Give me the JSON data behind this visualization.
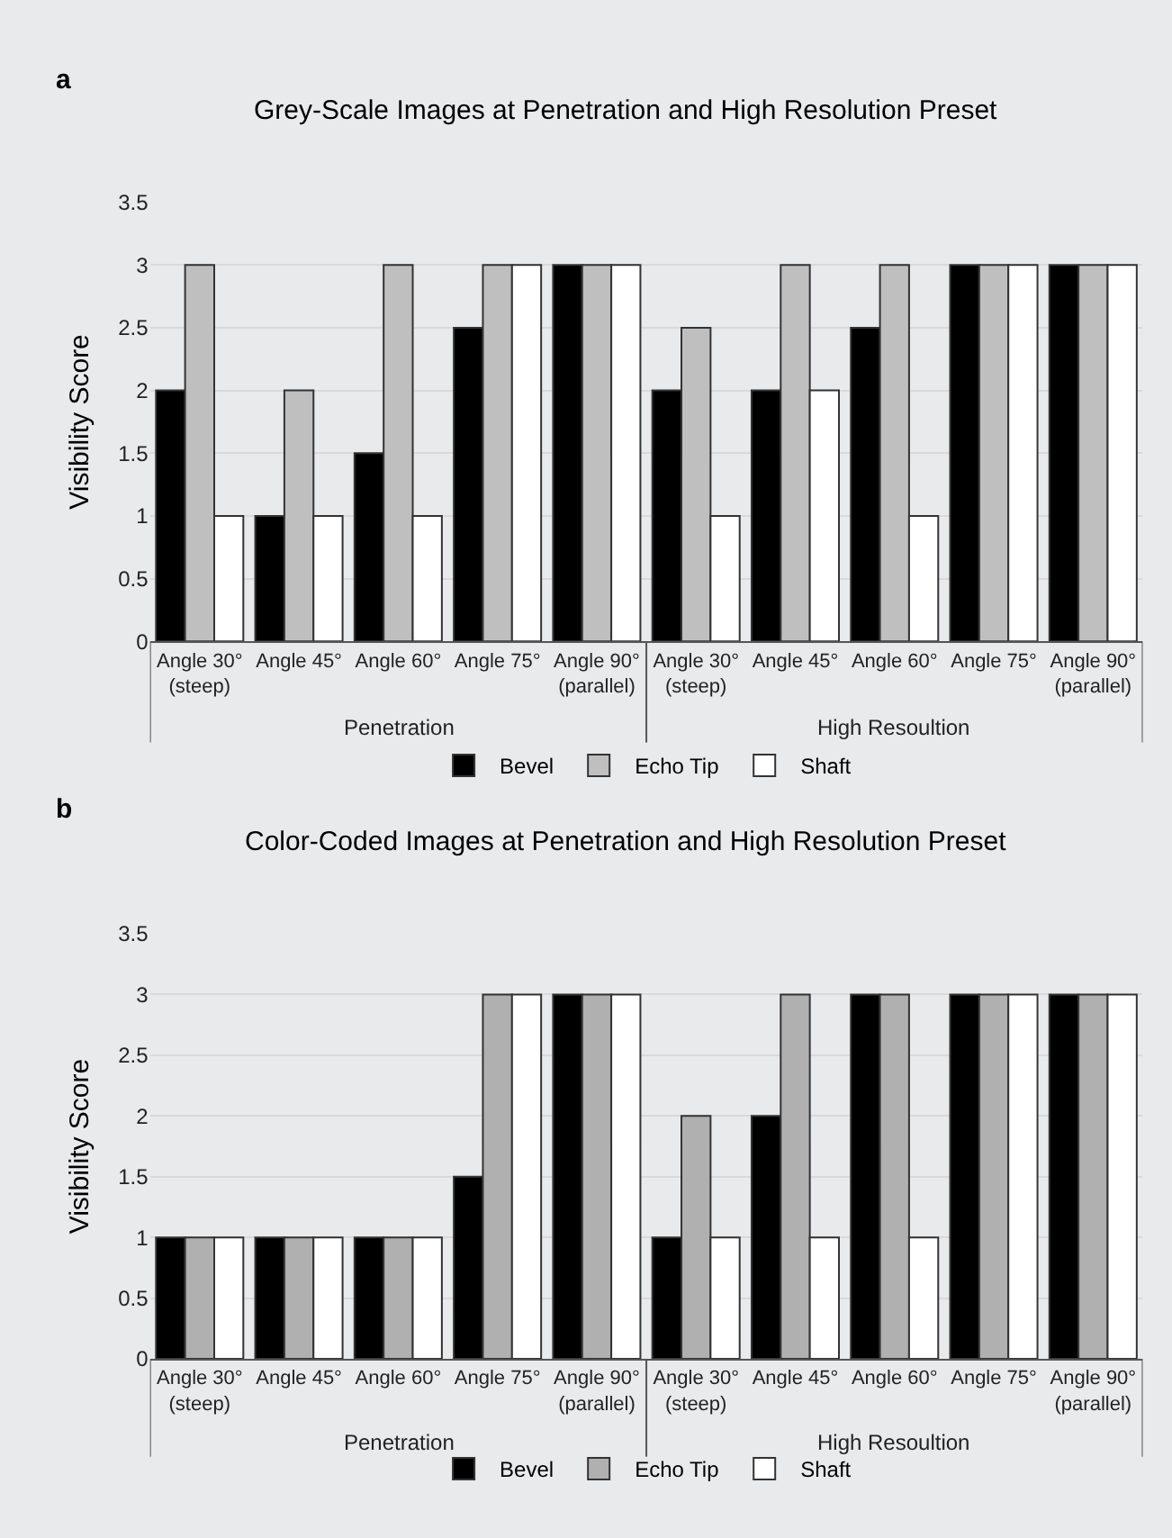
{
  "chart_data": [
    {
      "type": "bar",
      "title": "Grey-Scale Images at Penetration and High Resolution Preset",
      "ylabel": "Visibility Score",
      "categories": [
        "Angle 30°\n(steep)",
        "Angle 45°",
        "Angle 60°",
        "Angle 75°",
        "Angle 90°\n(parallel)",
        "Angle 30°\n(steep)",
        "Angle 45°",
        "Angle 60°",
        "Angle 75°",
        "Angle 90°\n(parallel)"
      ],
      "series": [
        {
          "name": "Bevel",
          "color": "#000000",
          "values": [
            2,
            1,
            1.5,
            2.5,
            3,
            2,
            2,
            2.5,
            3,
            3
          ]
        },
        {
          "name": "Echo Tip",
          "color": "#bfbfbf",
          "values": [
            3,
            2,
            3,
            3,
            3,
            2.5,
            3,
            3,
            3,
            3
          ]
        },
        {
          "name": "Shaft",
          "color": "#ffffff",
          "values": [
            1,
            1,
            1,
            3,
            3,
            1,
            2,
            1,
            3,
            3
          ]
        }
      ],
      "annotations": [
        "a",
        "Penetration",
        "High Resoultion"
      ],
      "ylim": [
        0,
        3.5
      ],
      "yticks": [
        0,
        0.5,
        1,
        1.5,
        2,
        2.5,
        3,
        3.5
      ],
      "grid": "y",
      "legend": "bottom"
    },
    {
      "type": "bar",
      "title": "Color-Coded Images at Penetration and High Resolution Preset",
      "ylabel": "Visibility Score",
      "categories": [
        "Angle 30°\n(steep)",
        "Angle 45°",
        "Angle 60°",
        "Angle 75°",
        "Angle 90°\n(parallel)",
        "Angle 30°\n(steep)",
        "Angle 45°",
        "Angle 60°",
        "Angle 75°",
        "Angle 90°\n(parallel)"
      ],
      "series": [
        {
          "name": "Bevel",
          "color": "#000000",
          "values": [
            1,
            1,
            1,
            1.5,
            3,
            1,
            2,
            3,
            3,
            3
          ]
        },
        {
          "name": "Echo Tip",
          "color": "#b0b0b0",
          "values": [
            1,
            1,
            1,
            3,
            3,
            2,
            3,
            3,
            3,
            3
          ]
        },
        {
          "name": "Shaft",
          "color": "#ffffff",
          "values": [
            1,
            1,
            1,
            3,
            3,
            1,
            1,
            1,
            3,
            3
          ]
        }
      ],
      "annotations": [
        "b",
        "Penetration",
        "High Resoultion"
      ],
      "ylim": [
        0,
        3.5
      ],
      "yticks": [
        0,
        0.5,
        1,
        1.5,
        2,
        2.5,
        3,
        3.5
      ],
      "grid": "y",
      "legend": "bottom"
    }
  ]
}
